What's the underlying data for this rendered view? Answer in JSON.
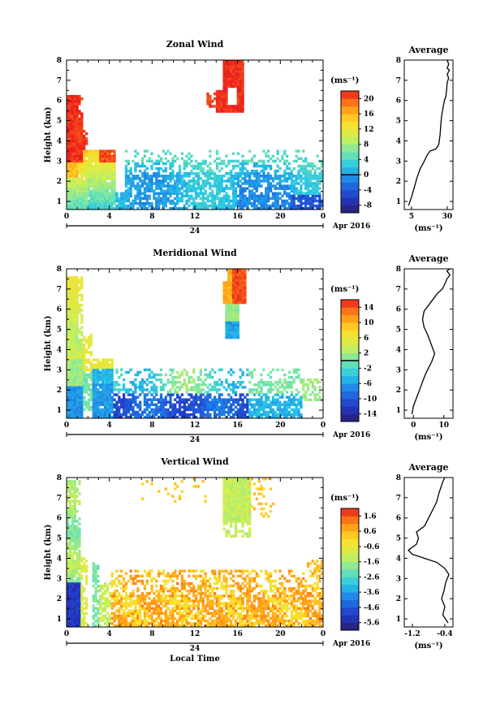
{
  "chart_data": [
    {
      "type": "heatmap",
      "title": "Zonal Wind",
      "xlabel": "",
      "ylabel": "Height (km)",
      "date_label": "Apr 2016",
      "day_label": "24",
      "unit": "(ms⁻¹)",
      "xlim": [
        0,
        24
      ],
      "ylim": [
        0.6,
        8
      ],
      "x_ticks": [
        "0",
        "4",
        "8",
        "12",
        "16",
        "20",
        "0"
      ],
      "y_ticks": [
        "1",
        "2",
        "3",
        "4",
        "5",
        "6",
        "7",
        "8"
      ],
      "colorbar": {
        "ticks": [
          "-8",
          "-4",
          "0",
          "4",
          "8",
          "12",
          "16",
          "20"
        ],
        "range": [
          -10,
          22
        ],
        "zero_line": 0
      },
      "average_profile": {
        "title": "Average",
        "xlabel": "(ms⁻¹)",
        "x_ticks": [
          "5",
          "30"
        ],
        "xlim": [
          0,
          34
        ],
        "points": [
          [
            3,
            0.8
          ],
          [
            5,
            1.2
          ],
          [
            7,
            1.7
          ],
          [
            9,
            2.2
          ],
          [
            11,
            2.6
          ],
          [
            14,
            3.0
          ],
          [
            16,
            3.3
          ],
          [
            18,
            3.5
          ],
          [
            22,
            3.6
          ],
          [
            24,
            3.8
          ],
          [
            25,
            4.3
          ],
          [
            25.5,
            4.8
          ],
          [
            26,
            5.2
          ],
          [
            27,
            5.6
          ],
          [
            28,
            6.0
          ],
          [
            29,
            6.2
          ],
          [
            29.5,
            6.5
          ],
          [
            30,
            6.9
          ],
          [
            31,
            7.1
          ],
          [
            30,
            7.3
          ],
          [
            31.5,
            7.5
          ],
          [
            30,
            7.6
          ],
          [
            31,
            7.8
          ],
          [
            30,
            8.0
          ]
        ]
      }
    },
    {
      "type": "heatmap",
      "title": "Meridional Wind",
      "xlabel": "",
      "ylabel": "Height (km)",
      "date_label": "Apr 2016",
      "day_label": "24",
      "unit": "(ms⁻¹)",
      "xlim": [
        0,
        24
      ],
      "ylim": [
        0.6,
        8
      ],
      "x_ticks": [
        "0",
        "4",
        "8",
        "12",
        "16",
        "20",
        "0"
      ],
      "y_ticks": [
        "1",
        "2",
        "3",
        "4",
        "5",
        "6",
        "7",
        "8"
      ],
      "colorbar": {
        "ticks": [
          "-14",
          "-10",
          "-6",
          "-2",
          "2",
          "6",
          "10",
          "14"
        ],
        "range": [
          -16,
          16
        ],
        "zero_line": 0
      },
      "average_profile": {
        "title": "Average",
        "xlabel": "(ms⁻¹)",
        "x_ticks": [
          "0",
          "10"
        ],
        "xlim": [
          -3,
          13
        ],
        "points": [
          [
            -0.5,
            0.8
          ],
          [
            0,
            1.2
          ],
          [
            1,
            1.6
          ],
          [
            2,
            2.0
          ],
          [
            3,
            2.4
          ],
          [
            4,
            2.8
          ],
          [
            5,
            3.1
          ],
          [
            6,
            3.4
          ],
          [
            7,
            3.8
          ],
          [
            6.5,
            4.0
          ],
          [
            5.5,
            4.4
          ],
          [
            4.5,
            4.8
          ],
          [
            3.5,
            5.1
          ],
          [
            3,
            5.5
          ],
          [
            3.5,
            5.9
          ],
          [
            5,
            6.2
          ],
          [
            6.5,
            6.5
          ],
          [
            8,
            6.8
          ],
          [
            9.5,
            7.0
          ],
          [
            10.5,
            7.3
          ],
          [
            11,
            7.5
          ],
          [
            12,
            7.7
          ],
          [
            11,
            7.9
          ],
          [
            12,
            8.0
          ]
        ]
      }
    },
    {
      "type": "heatmap",
      "title": "Vertical Wind",
      "xlabel": "Local Time",
      "ylabel": "Height (km)",
      "date_label": "Apr 2016",
      "day_label": "24",
      "unit": "(ms⁻¹)",
      "xlim": [
        0,
        24
      ],
      "ylim": [
        0.6,
        8
      ],
      "x_ticks": [
        "0",
        "4",
        "8",
        "12",
        "16",
        "20",
        "0"
      ],
      "y_ticks": [
        "1",
        "2",
        "3",
        "4",
        "5",
        "6",
        "7",
        "8"
      ],
      "colorbar": {
        "ticks": [
          "-5.6",
          "-4.6",
          "-3.6",
          "-2.6",
          "-1.6",
          "-0.6",
          "0.6",
          "1.6"
        ],
        "range": [
          -6.1,
          2.1
        ],
        "zero_line": null
      },
      "average_profile": {
        "title": "Average",
        "xlabel": "(ms⁻¹)",
        "x_ticks": [
          "-1.2",
          "-0.4"
        ],
        "xlim": [
          -1.4,
          -0.2
        ],
        "points": [
          [
            -0.32,
            0.8
          ],
          [
            -0.45,
            1.2
          ],
          [
            -0.4,
            1.6
          ],
          [
            -0.48,
            2.0
          ],
          [
            -0.42,
            2.4
          ],
          [
            -0.38,
            2.8
          ],
          [
            -0.3,
            3.2
          ],
          [
            -0.4,
            3.5
          ],
          [
            -0.6,
            3.8
          ],
          [
            -0.9,
            4.0
          ],
          [
            -1.2,
            4.2
          ],
          [
            -1.3,
            4.4
          ],
          [
            -1.1,
            4.7
          ],
          [
            -1.05,
            5.0
          ],
          [
            -1.1,
            5.3
          ],
          [
            -0.9,
            5.6
          ],
          [
            -0.8,
            6.0
          ],
          [
            -0.7,
            6.4
          ],
          [
            -0.6,
            6.8
          ],
          [
            -0.55,
            7.2
          ],
          [
            -0.5,
            7.5
          ],
          [
            -0.45,
            7.8
          ],
          [
            -0.4,
            8.0
          ]
        ]
      }
    }
  ]
}
